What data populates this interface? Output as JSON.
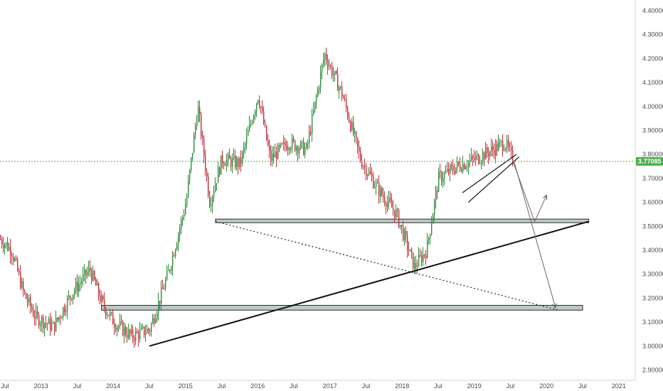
{
  "chart_data": {
    "type": "candlestick",
    "title": "",
    "xlabel": "",
    "ylabel": "",
    "ylim": [
      2.87,
      4.43
    ],
    "grid": false,
    "legend": "none",
    "y_ticks": [
      "4.40000",
      "4.30000",
      "4.20000",
      "4.10000",
      "4.00000",
      "3.90000",
      "3.80000",
      "3.70000",
      "3.60000",
      "3.50000",
      "3.40000",
      "3.30000",
      "3.20000",
      "3.10000",
      "3.00000",
      "2.90000"
    ],
    "x_ticks": [
      "Jul",
      "2013",
      "Jul",
      "2014",
      "Jul",
      "2015",
      "Jul",
      "2016",
      "Jul",
      "2017",
      "Jul",
      "2018",
      "Jul",
      "2019",
      "Jul",
      "2020",
      "Jul",
      "2021"
    ],
    "last_price": "3.77085",
    "colors": {
      "up": "#26a69a",
      "down": "#ef5350",
      "up_fill": "#2e8b3a",
      "down_fill": "#c0303a",
      "price_line": "#4caf50",
      "zone": "#aab8b3"
    },
    "price_path": [
      [
        "2012-06-01",
        3.45
      ],
      [
        "2012-08-01",
        3.4
      ],
      [
        "2012-10-01",
        3.22
      ],
      [
        "2012-12-01",
        3.12
      ],
      [
        "2013-03-01",
        3.08
      ],
      [
        "2013-06-01",
        3.22
      ],
      [
        "2013-09-01",
        3.32
      ],
      [
        "2013-11-01",
        3.18
      ],
      [
        "2014-01-01",
        3.1
      ],
      [
        "2014-04-01",
        3.04
      ],
      [
        "2014-07-01",
        3.07
      ],
      [
        "2014-10-01",
        3.3
      ],
      [
        "2015-01-01",
        3.6
      ],
      [
        "2015-03-01",
        4.0
      ],
      [
        "2015-05-01",
        3.6
      ],
      [
        "2015-07-01",
        3.78
      ],
      [
        "2015-10-01",
        3.76
      ],
      [
        "2016-01-01",
        4.05
      ],
      [
        "2016-03-01",
        3.78
      ],
      [
        "2016-06-01",
        3.85
      ],
      [
        "2016-09-01",
        3.82
      ],
      [
        "2016-12-01",
        4.22
      ],
      [
        "2017-03-01",
        4.05
      ],
      [
        "2017-06-01",
        3.78
      ],
      [
        "2017-09-01",
        3.65
      ],
      [
        "2017-12-01",
        3.55
      ],
      [
        "2018-03-01",
        3.33
      ],
      [
        "2018-05-01",
        3.4
      ],
      [
        "2018-07-01",
        3.7
      ],
      [
        "2018-10-01",
        3.75
      ],
      [
        "2019-01-01",
        3.78
      ],
      [
        "2019-04-01",
        3.82
      ],
      [
        "2019-06-01",
        3.85
      ],
      [
        "2019-07-15",
        3.77
      ]
    ],
    "annotations": [
      {
        "name": "upper-support-zone",
        "kind": "zone",
        "x1": "2015-06-01",
        "x2": "2020-08-01",
        "y1": 3.515,
        "y2": 3.53
      },
      {
        "name": "lower-support-zone",
        "kind": "zone",
        "x1": "2013-11-01",
        "x2": "2020-07-01",
        "y1": 3.15,
        "y2": 3.17
      },
      {
        "name": "rising-trendline",
        "kind": "line",
        "x1": "2014-07-01",
        "y1": 3.0,
        "x2": "2020-08-01",
        "y2": 3.52
      },
      {
        "name": "dotted-trendline",
        "kind": "dotted",
        "x1": "2015-06-01",
        "y1": 3.52,
        "x2": "2020-03-01",
        "y2": 3.15
      },
      {
        "name": "channel-upper-line",
        "kind": "line",
        "x1": "2018-11-01",
        "y1": 3.64,
        "x2": "2019-08-01",
        "y2": 3.8
      },
      {
        "name": "channel-lower-line",
        "kind": "line",
        "x1": "2018-12-01",
        "y1": 3.6,
        "x2": "2019-08-15",
        "y2": 3.79
      },
      {
        "name": "projection-arrow-to-zone",
        "kind": "arrow",
        "points": [
          [
            "2019-07-15",
            3.77
          ],
          [
            "2019-11-01",
            3.52
          ],
          [
            "2020-01-01",
            3.63
          ]
        ]
      },
      {
        "name": "projection-arrow-down",
        "kind": "arrow",
        "points": [
          [
            "2019-07-20",
            3.77
          ],
          [
            "2020-02-15",
            3.16
          ]
        ]
      }
    ]
  }
}
